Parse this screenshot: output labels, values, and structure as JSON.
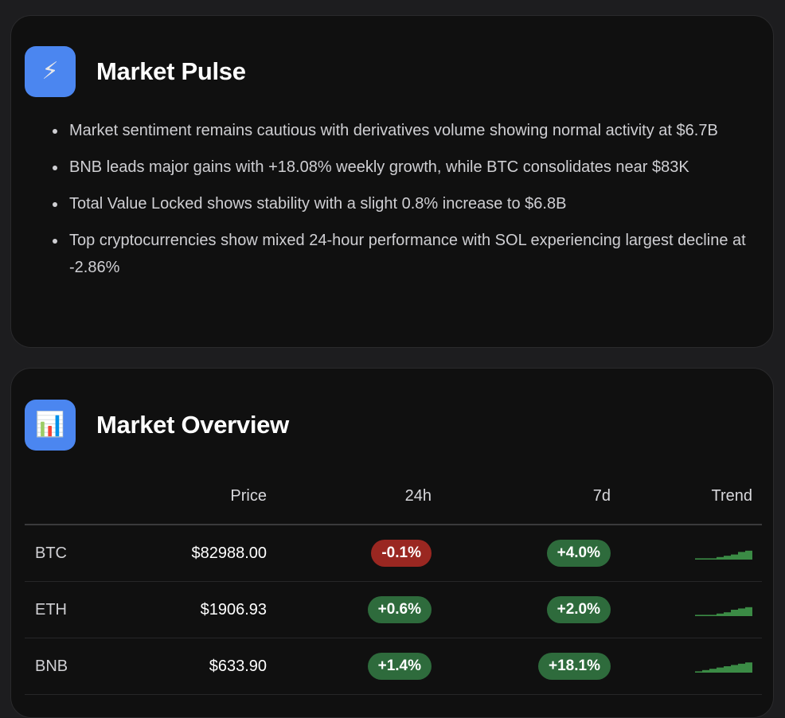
{
  "colors": {
    "icon_bg": "#4b86f0",
    "positive": "#2e6b3c",
    "negative": "#9a2721",
    "spark": "#3b8b45"
  },
  "pulse": {
    "icon": "lightning-bolt-icon",
    "icon_glyph": "⚡",
    "title": "Market Pulse",
    "bullets": [
      "Market sentiment remains cautious with derivatives volume showing normal activity at $6.7B",
      "BNB leads major gains with +18.08% weekly growth, while BTC consolidates near $83K",
      "Total Value Locked shows stability with a slight 0.8% increase to $6.8B",
      "Top cryptocurrencies show mixed 24-hour performance with SOL experiencing largest decline at -2.86%"
    ]
  },
  "overview": {
    "icon": "bar-chart-icon",
    "icon_glyph": "📊",
    "title": "Market Overview",
    "headers": {
      "symbol": "",
      "price": "Price",
      "change_24h": "24h",
      "change_7d": "7d",
      "trend": "Trend"
    },
    "rows": [
      {
        "symbol": "BTC",
        "price": "$82988.00",
        "change_24h": "-0.1%",
        "change_24h_dir": "neg",
        "change_7d": "+4.0%",
        "change_7d_dir": "pos",
        "trend": [
          0.1,
          0.1,
          0.1,
          0.2,
          0.3,
          0.4,
          0.6,
          0.7
        ]
      },
      {
        "symbol": "ETH",
        "price": "$1906.93",
        "change_24h": "+0.6%",
        "change_24h_dir": "pos",
        "change_7d": "+2.0%",
        "change_7d_dir": "pos",
        "trend": [
          0.1,
          0.1,
          0.1,
          0.2,
          0.3,
          0.5,
          0.6,
          0.7
        ]
      },
      {
        "symbol": "BNB",
        "price": "$633.90",
        "change_24h": "+1.4%",
        "change_24h_dir": "pos",
        "change_7d": "+18.1%",
        "change_7d_dir": "pos",
        "trend": [
          0.1,
          0.2,
          0.3,
          0.4,
          0.5,
          0.6,
          0.7,
          0.8
        ]
      }
    ]
  }
}
